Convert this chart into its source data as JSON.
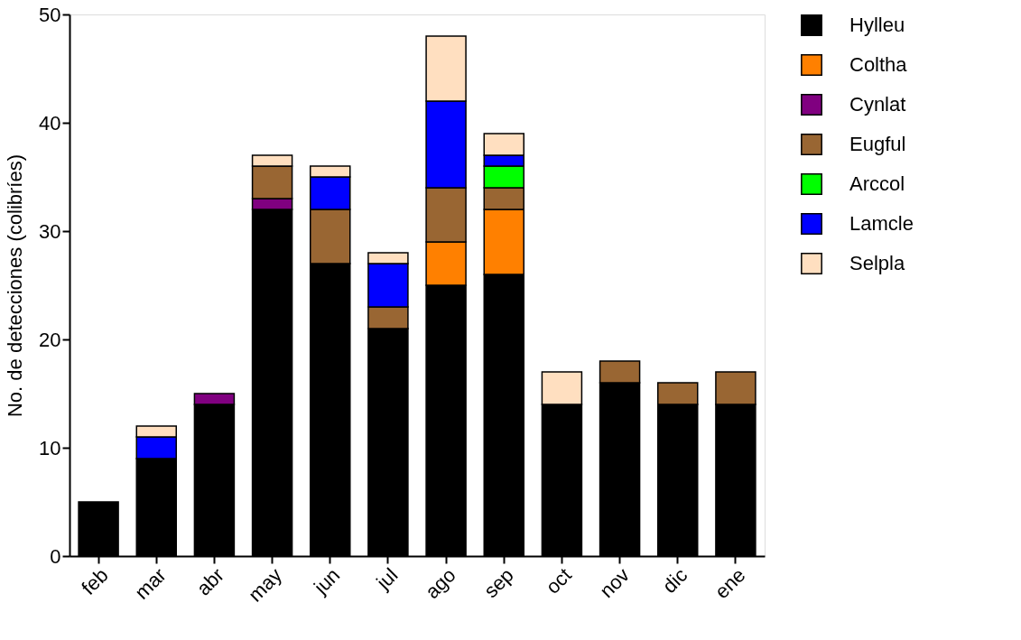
{
  "chart_data": {
    "type": "bar",
    "stacked": true,
    "ylabel": "No. de detecciones (colibríes)",
    "categories": [
      "feb",
      "mar",
      "abr",
      "may",
      "jun",
      "jul",
      "ago",
      "sep",
      "oct",
      "nov",
      "dic",
      "ene"
    ],
    "series": [
      {
        "name": "Hylleu",
        "color": "#000000",
        "values": [
          5,
          9,
          14,
          32,
          27,
          21,
          25,
          26,
          14,
          16,
          14,
          14
        ]
      },
      {
        "name": "Coltha",
        "color": "#ff8000",
        "values": [
          null,
          null,
          null,
          null,
          null,
          null,
          4,
          6,
          null,
          null,
          null,
          null
        ]
      },
      {
        "name": "Cynlat",
        "color": "#800080",
        "values": [
          null,
          null,
          1,
          1,
          null,
          null,
          null,
          null,
          null,
          null,
          null,
          null
        ]
      },
      {
        "name": "Eugful",
        "color": "#996633",
        "values": [
          null,
          null,
          null,
          3,
          5,
          2,
          5,
          2,
          null,
          2,
          2,
          3
        ]
      },
      {
        "name": "Arccol",
        "color": "#00ff00",
        "values": [
          null,
          null,
          null,
          null,
          null,
          null,
          null,
          2,
          null,
          null,
          null,
          null
        ]
      },
      {
        "name": "Lamcle",
        "color": "#0000ff",
        "values": [
          null,
          2,
          null,
          null,
          3,
          4,
          8,
          1,
          null,
          null,
          null,
          null
        ]
      },
      {
        "name": "Selpla",
        "color": "#ffdfc0",
        "values": [
          null,
          1,
          null,
          1,
          1,
          1,
          6,
          2,
          3,
          null,
          null,
          null
        ]
      }
    ],
    "ylim": [
      0,
      50
    ],
    "yticks": [
      0,
      10,
      20,
      30,
      40,
      50
    ],
    "grid": false,
    "legend": "right"
  }
}
